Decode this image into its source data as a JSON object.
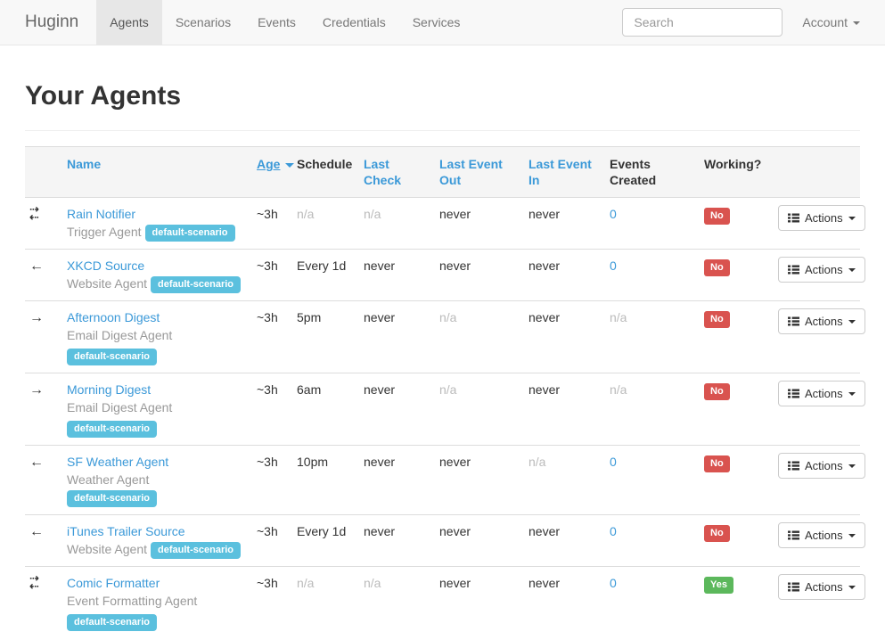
{
  "navbar": {
    "brand": "Huginn",
    "items": [
      {
        "label": "Agents",
        "active": true
      },
      {
        "label": "Scenarios",
        "active": false
      },
      {
        "label": "Events",
        "active": false
      },
      {
        "label": "Credentials",
        "active": false
      },
      {
        "label": "Services",
        "active": false
      }
    ],
    "search_placeholder": "Search",
    "account_label": "Account"
  },
  "page": {
    "title": "Your Agents"
  },
  "table": {
    "headers": [
      {
        "label": "Name",
        "sortable": true,
        "sorted": false
      },
      {
        "label": "Age",
        "sortable": true,
        "sorted": true
      },
      {
        "label": "Schedule",
        "sortable": false,
        "sorted": false
      },
      {
        "label": "Last Check",
        "sortable": true,
        "sorted": false
      },
      {
        "label": "Last Event Out",
        "sortable": true,
        "sorted": false
      },
      {
        "label": "Last Event In",
        "sortable": true,
        "sorted": false
      },
      {
        "label": "Events Created",
        "sortable": false,
        "sorted": false
      },
      {
        "label": "Working?",
        "sortable": false,
        "sorted": false
      }
    ],
    "actions_label": "Actions",
    "rows": [
      {
        "icon": "arrows-both",
        "name": "Rain Notifier",
        "type": "Trigger Agent",
        "scenario": "default-scenario",
        "badge_own_line": false,
        "age": "~3h",
        "schedule": "n/a",
        "last_check": "n/a",
        "last_event_out": "never",
        "last_event_in": "never",
        "events_created": "0",
        "working": "No"
      },
      {
        "icon": "arrow-left",
        "name": "XKCD Source",
        "type": "Website Agent",
        "scenario": "default-scenario",
        "badge_own_line": false,
        "age": "~3h",
        "schedule": "Every 1d",
        "last_check": "never",
        "last_event_out": "never",
        "last_event_in": "never",
        "events_created": "0",
        "working": "No"
      },
      {
        "icon": "arrow-right",
        "name": "Afternoon Digest",
        "type": "Email Digest Agent",
        "scenario": "default-scenario",
        "badge_own_line": true,
        "age": "~3h",
        "schedule": "5pm",
        "last_check": "never",
        "last_event_out": "n/a",
        "last_event_in": "never",
        "events_created": "n/a",
        "working": "No"
      },
      {
        "icon": "arrow-right",
        "name": "Morning Digest",
        "type": "Email Digest Agent",
        "scenario": "default-scenario",
        "badge_own_line": true,
        "age": "~3h",
        "schedule": "6am",
        "last_check": "never",
        "last_event_out": "n/a",
        "last_event_in": "never",
        "events_created": "n/a",
        "working": "No"
      },
      {
        "icon": "arrow-left",
        "name": "SF Weather Agent",
        "type": "Weather Agent",
        "scenario": "default-scenario",
        "badge_own_line": false,
        "age": "~3h",
        "schedule": "10pm",
        "last_check": "never",
        "last_event_out": "never",
        "last_event_in": "n/a",
        "events_created": "0",
        "working": "No"
      },
      {
        "icon": "arrow-left",
        "name": "iTunes Trailer Source",
        "type": "Website Agent",
        "scenario": "default-scenario",
        "badge_own_line": false,
        "age": "~3h",
        "schedule": "Every 1d",
        "last_check": "never",
        "last_event_out": "never",
        "last_event_in": "never",
        "events_created": "0",
        "working": "No"
      },
      {
        "icon": "arrows-both",
        "name": "Comic Formatter",
        "type": "Event Formatting Agent",
        "scenario": "default-scenario",
        "badge_own_line": true,
        "age": "~3h",
        "schedule": "n/a",
        "last_check": "n/a",
        "last_event_out": "never",
        "last_event_in": "never",
        "events_created": "0",
        "working": "Yes"
      }
    ],
    "muted_value": "n/a"
  },
  "colors": {
    "accent_blue": "#3b99d8",
    "info_badge": "#5bc0de",
    "danger_badge": "#d9534f",
    "success_badge": "#5cb85c"
  }
}
